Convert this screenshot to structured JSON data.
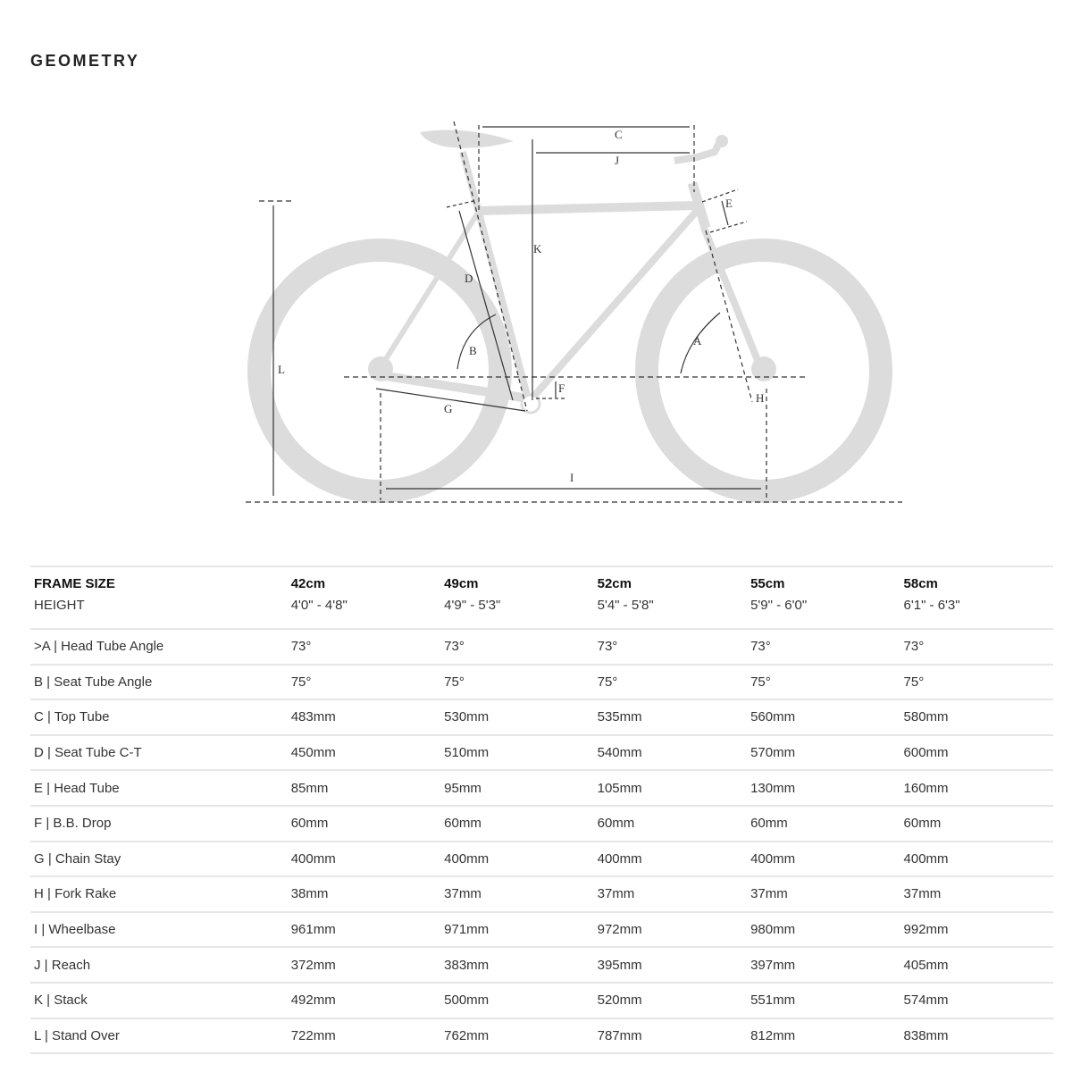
{
  "title": "GEOMETRY",
  "diagram": {
    "labels": {
      "A": "A",
      "B": "B",
      "C": "C",
      "D": "D",
      "E": "E",
      "F": "F",
      "G": "G",
      "H": "H",
      "I": "I",
      "J": "J",
      "K": "K",
      "L": "L"
    },
    "colors": {
      "frame": "#d9d9d9",
      "lines": "#333333"
    }
  },
  "table": {
    "header": {
      "label": "FRAME SIZE",
      "sizes": [
        "42cm",
        "49cm",
        "52cm",
        "55cm",
        "58cm"
      ]
    },
    "height": {
      "label": "HEIGHT",
      "values": [
        "4'0\" - 4'8\"",
        "4'9\" - 5'3\"",
        "5'4\" - 5'8\"",
        "5'9\" - 6'0\"",
        "6'1\" - 6'3\""
      ]
    },
    "rows": [
      {
        "label": ">A | Head Tube Angle",
        "values": [
          "73°",
          "73°",
          "73°",
          "73°",
          "73°"
        ]
      },
      {
        "label": "B | Seat Tube Angle",
        "values": [
          "75°",
          "75°",
          "75°",
          "75°",
          "75°"
        ]
      },
      {
        "label": "C | Top Tube",
        "values": [
          "483mm",
          "530mm",
          "535mm",
          "560mm",
          "580mm"
        ]
      },
      {
        "label": "D | Seat Tube C-T",
        "values": [
          "450mm",
          "510mm",
          "540mm",
          "570mm",
          "600mm"
        ]
      },
      {
        "label": "E | Head Tube",
        "values": [
          "85mm",
          "95mm",
          "105mm",
          "130mm",
          "160mm"
        ]
      },
      {
        "label": "F | B.B. Drop",
        "values": [
          "60mm",
          "60mm",
          "60mm",
          "60mm",
          "60mm"
        ]
      },
      {
        "label": "G | Chain Stay",
        "values": [
          "400mm",
          "400mm",
          "400mm",
          "400mm",
          "400mm"
        ]
      },
      {
        "label": "H | Fork Rake",
        "values": [
          "38mm",
          "37mm",
          "37mm",
          "37mm",
          "37mm"
        ]
      },
      {
        "label": "I | Wheelbase",
        "values": [
          "961mm",
          "971mm",
          "972mm",
          "980mm",
          "992mm"
        ]
      },
      {
        "label": "J | Reach",
        "values": [
          "372mm",
          "383mm",
          "395mm",
          "397mm",
          "405mm"
        ]
      },
      {
        "label": "K | Stack",
        "values": [
          "492mm",
          "500mm",
          "520mm",
          "551mm",
          "574mm"
        ]
      },
      {
        "label": "L | Stand Over",
        "values": [
          "722mm",
          "762mm",
          "787mm",
          "812mm",
          "838mm"
        ]
      }
    ]
  }
}
